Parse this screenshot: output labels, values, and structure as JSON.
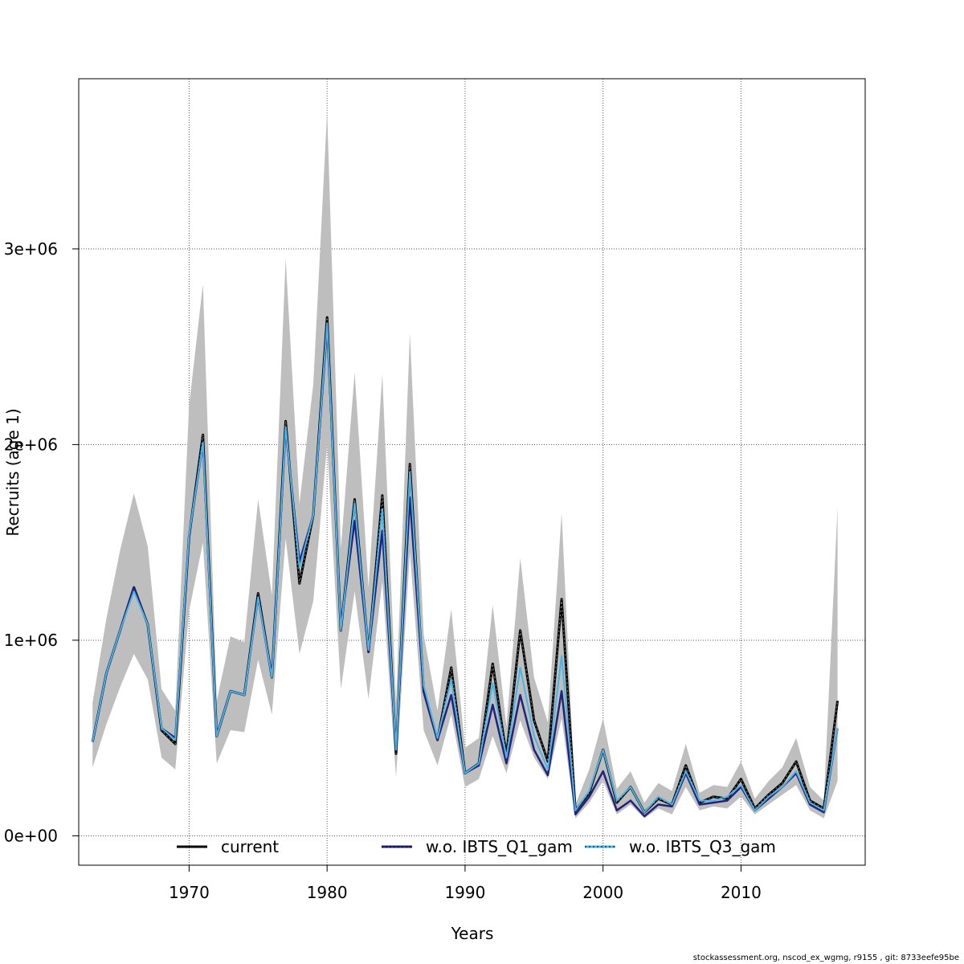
{
  "chart_data": {
    "type": "line",
    "xlabel": "Years",
    "ylabel": "Recruits (age 1)",
    "xlim": [
      1962,
      2019
    ],
    "ylim": [
      -150000,
      3870000
    ],
    "x_ticks": [
      1970,
      1980,
      1990,
      2000,
      2010
    ],
    "x_tick_labels": [
      "1970",
      "1980",
      "1990",
      "2000",
      "2010"
    ],
    "y_ticks": [
      0,
      1000000,
      2000000,
      3000000
    ],
    "y_tick_labels": [
      "0e+00",
      "1e+06",
      "2e+06",
      "3e+06"
    ],
    "grid": true,
    "legend_position": "bottom",
    "x": [
      1963,
      1964,
      1965,
      1966,
      1967,
      1968,
      1969,
      1970,
      1971,
      1972,
      1973,
      1974,
      1975,
      1976,
      1977,
      1978,
      1979,
      1980,
      1981,
      1982,
      1983,
      1984,
      1985,
      1986,
      1987,
      1988,
      1989,
      1990,
      1991,
      1992,
      1993,
      1994,
      1995,
      1996,
      1997,
      1998,
      1999,
      2000,
      2001,
      2002,
      2003,
      2004,
      2005,
      2006,
      2007,
      2008,
      2009,
      2010,
      2011,
      2012,
      2013,
      2014,
      2015,
      2016,
      2017
    ],
    "band": {
      "color": "#bebebe",
      "lower": [
        350000,
        570000,
        760000,
        930000,
        800000,
        400000,
        340000,
        1150000,
        1500000,
        370000,
        540000,
        530000,
        900000,
        620000,
        1520000,
        930000,
        1200000,
        2000000,
        750000,
        1250000,
        700000,
        1300000,
        300000,
        1450000,
        540000,
        360000,
        620000,
        250000,
        290000,
        510000,
        320000,
        590000,
        400000,
        290000,
        600000,
        90000,
        170000,
        280000,
        110000,
        160000,
        90000,
        140000,
        110000,
        250000,
        130000,
        150000,
        140000,
        200000,
        110000,
        160000,
        210000,
        260000,
        130000,
        90000,
        280000
      ],
      "upper": [
        680000,
        1110000,
        1460000,
        1750000,
        1480000,
        750000,
        640000,
        2200000,
        2820000,
        690000,
        1020000,
        990000,
        1720000,
        1230000,
        2950000,
        1700000,
        2310000,
        3700000,
        1470000,
        2370000,
        1270000,
        2360000,
        680000,
        2570000,
        1030000,
        640000,
        1160000,
        450000,
        500000,
        1180000,
        560000,
        1420000,
        810000,
        580000,
        1650000,
        160000,
        340000,
        600000,
        240000,
        330000,
        170000,
        270000,
        230000,
        470000,
        220000,
        260000,
        250000,
        380000,
        190000,
        280000,
        350000,
        500000,
        250000,
        180000,
        1680000
      ]
    },
    "series": [
      {
        "name": "current",
        "color": "#000000",
        "values": [
          480000,
          830000,
          1050000,
          1270000,
          1080000,
          540000,
          470000,
          1530000,
          2050000,
          510000,
          740000,
          720000,
          1240000,
          810000,
          2120000,
          1290000,
          1640000,
          2650000,
          1050000,
          1720000,
          940000,
          1740000,
          420000,
          1900000,
          740000,
          490000,
          860000,
          320000,
          370000,
          880000,
          410000,
          1050000,
          590000,
          380000,
          1210000,
          130000,
          220000,
          440000,
          170000,
          250000,
          120000,
          190000,
          160000,
          360000,
          170000,
          200000,
          190000,
          290000,
          140000,
          210000,
          270000,
          380000,
          180000,
          140000,
          690000
        ]
      },
      {
        "name": "w.o. IBTS_Q1_gam",
        "color": "#22227a",
        "values": [
          480000,
          830000,
          1050000,
          1270000,
          1080000,
          550000,
          500000,
          1530000,
          2010000,
          510000,
          740000,
          720000,
          1220000,
          810000,
          2080000,
          1400000,
          1640000,
          2600000,
          1070000,
          1610000,
          940000,
          1560000,
          440000,
          1730000,
          740000,
          490000,
          720000,
          320000,
          360000,
          670000,
          370000,
          720000,
          440000,
          310000,
          740000,
          110000,
          200000,
          330000,
          130000,
          180000,
          100000,
          160000,
          150000,
          320000,
          160000,
          170000,
          180000,
          250000,
          130000,
          190000,
          250000,
          320000,
          160000,
          120000,
          550000
        ]
      },
      {
        "name": "w.o. IBTS_Q3_gam",
        "color": "#47b5e8",
        "values": [
          480000,
          830000,
          1050000,
          1250000,
          1080000,
          550000,
          490000,
          1540000,
          2010000,
          510000,
          740000,
          720000,
          1220000,
          810000,
          2090000,
          1370000,
          1640000,
          2620000,
          1050000,
          1700000,
          950000,
          1670000,
          440000,
          1860000,
          770000,
          500000,
          800000,
          320000,
          370000,
          780000,
          400000,
          860000,
          510000,
          340000,
          920000,
          130000,
          230000,
          440000,
          180000,
          250000,
          120000,
          200000,
          160000,
          330000,
          180000,
          180000,
          200000,
          260000,
          130000,
          200000,
          250000,
          330000,
          170000,
          130000,
          550000
        ]
      }
    ]
  },
  "footer": "stockassessment.org, nscod_ex_wgmg, r9155 , git: 8733eefe95be"
}
